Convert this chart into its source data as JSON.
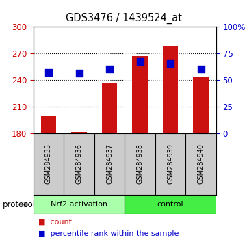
{
  "title": "GDS3476 / 1439524_at",
  "samples": [
    "GSM284935",
    "GSM284936",
    "GSM284937",
    "GSM284938",
    "GSM284939",
    "GSM284940"
  ],
  "counts": [
    200,
    181,
    236,
    267,
    278,
    244
  ],
  "percentile_ranks": [
    57,
    56,
    60,
    67,
    65,
    60
  ],
  "ylim_left": [
    180,
    300
  ],
  "ylim_right": [
    0,
    100
  ],
  "yticks_left": [
    180,
    210,
    240,
    270,
    300
  ],
  "yticks_right": [
    0,
    25,
    50,
    75,
    100
  ],
  "ytick_labels_right": [
    "0",
    "25",
    "50",
    "75",
    "100%"
  ],
  "bar_color": "#cc1111",
  "dot_color": "#0000cc",
  "bar_bottom": 180,
  "groups": [
    {
      "label": "Nrf2 activation",
      "indices": [
        0,
        1,
        2
      ],
      "color": "#aaffaa"
    },
    {
      "label": "control",
      "indices": [
        3,
        4,
        5
      ],
      "color": "#44ee44"
    }
  ],
  "protocol_label": "protocol",
  "legend_count_label": "count",
  "legend_pct_label": "percentile rank within the sample",
  "bg_color": "#ffffff",
  "plot_bg": "#ffffff",
  "left_axis_color": "#cc0000",
  "right_axis_color": "#0000cc",
  "bar_width": 0.5,
  "dot_size": 45,
  "box_color": "#cccccc",
  "grid_yticks": [
    210,
    240,
    270
  ]
}
